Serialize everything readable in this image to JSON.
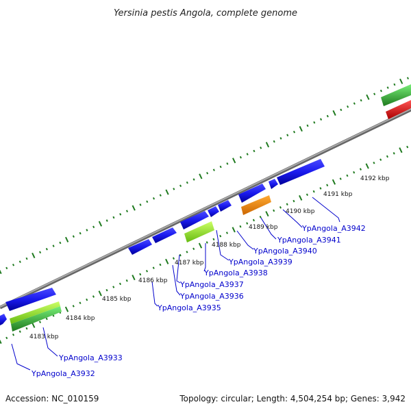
{
  "title": "Yersinia pestis Angola, complete genome",
  "footer": {
    "accession": "Accession: NC_010159",
    "summary": "Topology: circular; Length: 4,504,254 bp; Genes: 3,942"
  },
  "kbp_ticks": [
    "4183 kbp",
    "4184 kbp",
    "4185 kbp",
    "4186 kbp",
    "4187 kbp",
    "4188 kbp",
    "4189 kbp",
    "4190 kbp",
    "4191 kbp",
    "4192 kbp"
  ],
  "gene_labels": [
    "YpAngola_A3932",
    "YpAngola_A3933",
    "YpAngola_A3935",
    "YpAngola_A3936",
    "YpAngola_A3937",
    "YpAngola_A3938",
    "YpAngola_A3939",
    "YpAngola_A3940",
    "YpAngola_A3941",
    "YpAngola_A3942"
  ],
  "feature_colors": {
    "cds": "#1a1aee",
    "cds_dark": "#000099",
    "rrna": "#ff8800",
    "trna": "#99ee33",
    "gene_track": "#2e8b2e",
    "gene_track_light": "#55dd55",
    "other": "#ee1111",
    "backbone": "#888888",
    "ticks": "#1f7a1f",
    "label": "#0000cc"
  }
}
